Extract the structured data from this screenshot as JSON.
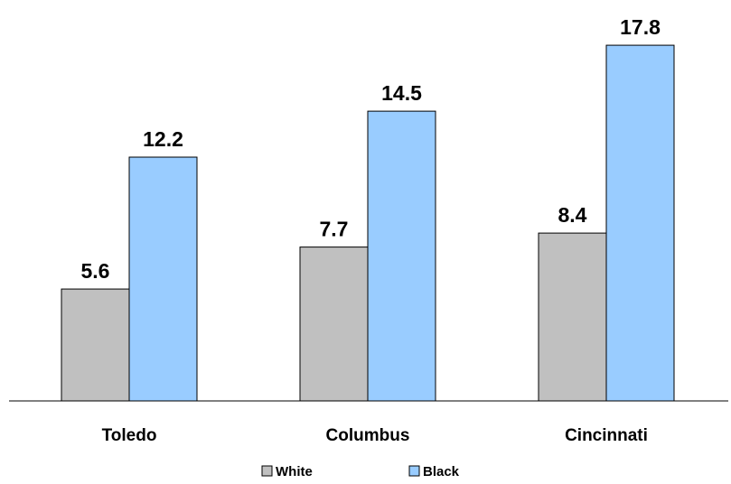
{
  "chart_data": {
    "type": "bar",
    "categories": [
      "Toledo",
      "Columbus",
      "Cincinnati"
    ],
    "series": [
      {
        "name": "White",
        "values": [
          5.6,
          7.7,
          8.4
        ],
        "color": "#c0c0c0"
      },
      {
        "name": "Black",
        "values": [
          12.2,
          14.5,
          17.8
        ],
        "color": "#99ccff"
      }
    ],
    "value_labels": [
      [
        "5.6",
        "7.7",
        "8.4"
      ],
      [
        "12.2",
        "14.5",
        "17.8"
      ]
    ],
    "title": "",
    "xlabel": "",
    "ylabel": "",
    "ylim": [
      0,
      18.6
    ],
    "grid": false,
    "legend_position": "bottom"
  }
}
